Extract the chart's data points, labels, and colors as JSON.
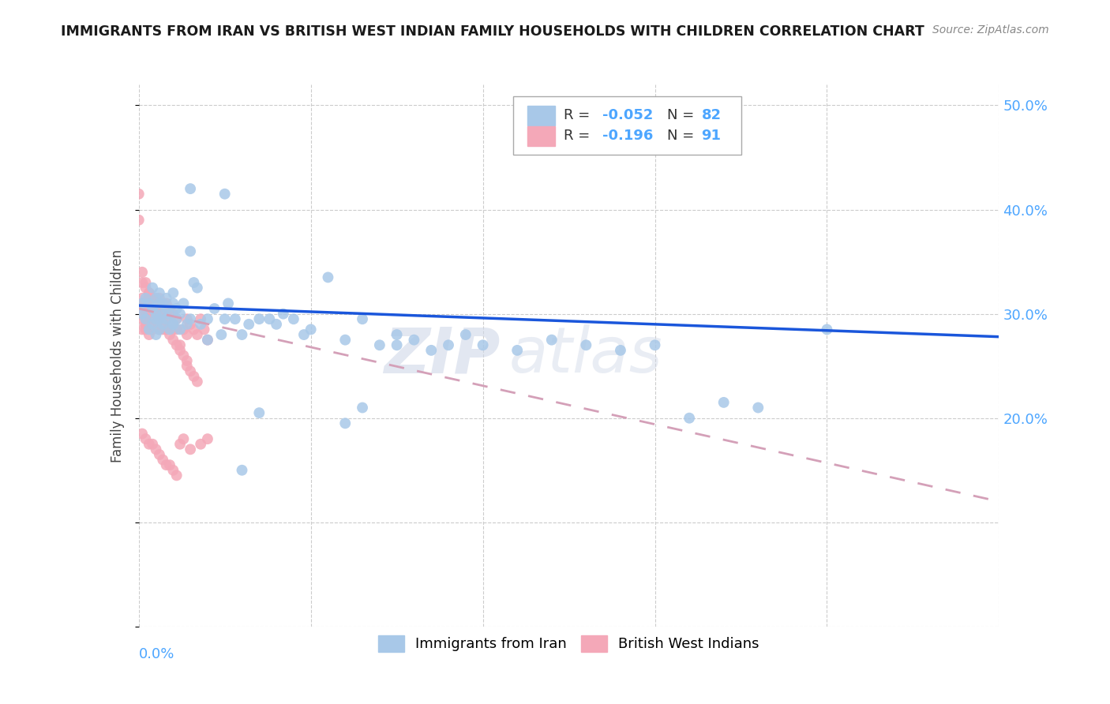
{
  "title": "IMMIGRANTS FROM IRAN VS BRITISH WEST INDIAN FAMILY HOUSEHOLDS WITH CHILDREN CORRELATION CHART",
  "source": "Source: ZipAtlas.com",
  "ylabel": "Family Households with Children",
  "legend_iran": "Immigrants from Iran",
  "legend_bwi": "British West Indians",
  "color_iran": "#a8c8e8",
  "color_bwi": "#f4a8b8",
  "color_iran_line": "#1a56db",
  "color_bwi_line": "#d4a0b8",
  "watermark_zip": "ZIP",
  "watermark_atlas": "atlas",
  "xmin": 0.0,
  "xmax": 0.25,
  "ymin": 0.0,
  "ymax": 0.52,
  "yticks": [
    0.0,
    0.1,
    0.2,
    0.3,
    0.4,
    0.5
  ],
  "ytick_right_labels": [
    "",
    "",
    "20.0%",
    "30.0%",
    "40.0%",
    "50.0%"
  ],
  "iran_line_x0": 0.0,
  "iran_line_x1": 0.25,
  "iran_line_y0": 0.308,
  "iran_line_y1": 0.278,
  "bwi_line_x0": 0.0,
  "bwi_line_x1": 0.25,
  "bwi_line_y0": 0.305,
  "bwi_line_y1": 0.12,
  "iran_x": [
    0.001,
    0.001,
    0.002,
    0.002,
    0.003,
    0.003,
    0.004,
    0.004,
    0.004,
    0.005,
    0.005,
    0.005,
    0.005,
    0.006,
    0.006,
    0.006,
    0.006,
    0.007,
    0.007,
    0.007,
    0.008,
    0.008,
    0.008,
    0.009,
    0.009,
    0.01,
    0.01,
    0.01,
    0.011,
    0.011,
    0.012,
    0.013,
    0.014,
    0.015,
    0.015,
    0.016,
    0.017,
    0.018,
    0.02,
    0.022,
    0.024,
    0.025,
    0.026,
    0.028,
    0.03,
    0.032,
    0.035,
    0.038,
    0.04,
    0.042,
    0.045,
    0.048,
    0.05,
    0.055,
    0.06,
    0.065,
    0.07,
    0.075,
    0.08,
    0.085,
    0.09,
    0.095,
    0.1,
    0.11,
    0.12,
    0.13,
    0.14,
    0.15,
    0.16,
    0.17,
    0.18,
    0.2,
    0.015,
    0.025,
    0.035,
    0.06,
    0.065,
    0.075,
    0.01,
    0.012,
    0.02,
    0.03
  ],
  "iran_y": [
    0.3,
    0.31,
    0.295,
    0.315,
    0.31,
    0.285,
    0.325,
    0.29,
    0.305,
    0.295,
    0.315,
    0.28,
    0.3,
    0.31,
    0.295,
    0.285,
    0.32,
    0.3,
    0.31,
    0.29,
    0.295,
    0.305,
    0.315,
    0.285,
    0.3,
    0.29,
    0.32,
    0.31,
    0.295,
    0.305,
    0.3,
    0.31,
    0.29,
    0.36,
    0.295,
    0.33,
    0.325,
    0.29,
    0.295,
    0.305,
    0.28,
    0.295,
    0.31,
    0.295,
    0.28,
    0.29,
    0.295,
    0.295,
    0.29,
    0.3,
    0.295,
    0.28,
    0.285,
    0.335,
    0.275,
    0.295,
    0.27,
    0.28,
    0.275,
    0.265,
    0.27,
    0.28,
    0.27,
    0.265,
    0.275,
    0.27,
    0.265,
    0.27,
    0.2,
    0.215,
    0.21,
    0.285,
    0.42,
    0.415,
    0.205,
    0.195,
    0.21,
    0.27,
    0.29,
    0.285,
    0.275,
    0.15
  ],
  "bwi_x": [
    0.0,
    0.0,
    0.001,
    0.001,
    0.001,
    0.001,
    0.001,
    0.001,
    0.002,
    0.002,
    0.002,
    0.002,
    0.002,
    0.002,
    0.002,
    0.003,
    0.003,
    0.003,
    0.003,
    0.003,
    0.003,
    0.003,
    0.004,
    0.004,
    0.004,
    0.004,
    0.004,
    0.005,
    0.005,
    0.005,
    0.005,
    0.006,
    0.006,
    0.006,
    0.006,
    0.007,
    0.007,
    0.007,
    0.008,
    0.008,
    0.008,
    0.009,
    0.009,
    0.01,
    0.01,
    0.011,
    0.011,
    0.012,
    0.013,
    0.014,
    0.014,
    0.015,
    0.016,
    0.017,
    0.018,
    0.019,
    0.02,
    0.001,
    0.002,
    0.003,
    0.004,
    0.005,
    0.006,
    0.007,
    0.008,
    0.009,
    0.01,
    0.011,
    0.012,
    0.013,
    0.014,
    0.015,
    0.001,
    0.002,
    0.003,
    0.004,
    0.005,
    0.006,
    0.007,
    0.008,
    0.009,
    0.01,
    0.011,
    0.012,
    0.013,
    0.014,
    0.015,
    0.016,
    0.017,
    0.018,
    0.02
  ],
  "bwi_y": [
    0.415,
    0.39,
    0.34,
    0.31,
    0.295,
    0.315,
    0.285,
    0.305,
    0.3,
    0.29,
    0.33,
    0.31,
    0.295,
    0.305,
    0.285,
    0.3,
    0.31,
    0.295,
    0.315,
    0.28,
    0.3,
    0.32,
    0.295,
    0.305,
    0.315,
    0.285,
    0.3,
    0.29,
    0.31,
    0.295,
    0.295,
    0.305,
    0.285,
    0.3,
    0.315,
    0.295,
    0.305,
    0.285,
    0.3,
    0.31,
    0.285,
    0.295,
    0.305,
    0.285,
    0.3,
    0.295,
    0.285,
    0.27,
    0.285,
    0.295,
    0.28,
    0.29,
    0.285,
    0.28,
    0.295,
    0.285,
    0.275,
    0.33,
    0.325,
    0.32,
    0.315,
    0.31,
    0.295,
    0.29,
    0.285,
    0.28,
    0.275,
    0.27,
    0.265,
    0.26,
    0.255,
    0.17,
    0.185,
    0.18,
    0.175,
    0.175,
    0.17,
    0.165,
    0.16,
    0.155,
    0.155,
    0.15,
    0.145,
    0.175,
    0.18,
    0.25,
    0.245,
    0.24,
    0.235,
    0.175,
    0.18
  ]
}
